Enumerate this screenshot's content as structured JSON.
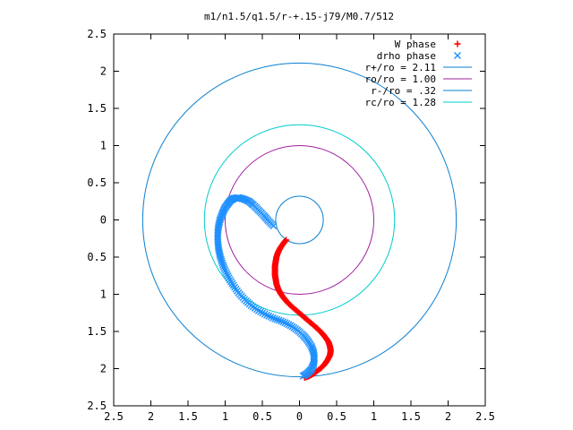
{
  "chart_data": {
    "type": "scatter",
    "title": "m1/n1.5/q1.5/r-+.15-j79/M0.7/512",
    "xlabel": "",
    "ylabel": "",
    "xlim": [
      -2.5,
      2.5
    ],
    "ylim": [
      -2.5,
      2.5
    ],
    "x_ticks": [
      -2.5,
      -2,
      -1.5,
      -1,
      -0.5,
      0,
      0.5,
      1,
      1.5,
      2,
      2.5
    ],
    "y_ticks": [
      -2.5,
      -2,
      -1.5,
      -1,
      -0.5,
      0,
      0.5,
      1,
      1.5,
      2,
      2.5
    ],
    "x_tick_labels": [
      "2.5",
      "2",
      "1.5",
      "1",
      "0.5",
      "0",
      "0.5",
      "1",
      "1.5",
      "2",
      "2.5"
    ],
    "y_tick_labels": [
      "2.5",
      "2",
      "1.5",
      "1",
      "0.5",
      "0",
      "0.5",
      "1",
      "1.5",
      "2",
      "2.5"
    ],
    "grid": false,
    "legend_position": "top-right",
    "series": [
      {
        "name": "W phase",
        "kind": "points",
        "marker": "+",
        "color": "#ff0000",
        "points": [
          [
            -0.18,
            -0.27
          ],
          [
            -0.22,
            -0.32
          ],
          [
            -0.26,
            -0.38
          ],
          [
            -0.29,
            -0.44
          ],
          [
            -0.31,
            -0.5
          ],
          [
            -0.32,
            -0.56
          ],
          [
            -0.33,
            -0.62
          ],
          [
            -0.33,
            -0.68
          ],
          [
            -0.33,
            -0.74
          ],
          [
            -0.32,
            -0.8
          ],
          [
            -0.31,
            -0.86
          ],
          [
            -0.29,
            -0.92
          ],
          [
            -0.26,
            -0.98
          ],
          [
            -0.22,
            -1.04
          ],
          [
            -0.17,
            -1.1
          ],
          [
            -0.11,
            -1.16
          ],
          [
            -0.04,
            -1.22
          ],
          [
            0.03,
            -1.28
          ],
          [
            0.1,
            -1.34
          ],
          [
            0.17,
            -1.4
          ],
          [
            0.24,
            -1.46
          ],
          [
            0.3,
            -1.52
          ],
          [
            0.35,
            -1.58
          ],
          [
            0.39,
            -1.64
          ],
          [
            0.41,
            -1.7
          ],
          [
            0.42,
            -1.76
          ],
          [
            0.41,
            -1.82
          ],
          [
            0.38,
            -1.88
          ],
          [
            0.34,
            -1.94
          ],
          [
            0.28,
            -2.0
          ],
          [
            0.2,
            -2.06
          ],
          [
            0.13,
            -2.1
          ],
          [
            0.07,
            -2.12
          ]
        ]
      },
      {
        "name": "drho phase",
        "kind": "points",
        "marker": "x",
        "color": "#1e90ff",
        "points": [
          [
            -0.35,
            -0.08
          ],
          [
            -0.42,
            -0.01
          ],
          [
            -0.48,
            0.06
          ],
          [
            -0.55,
            0.13
          ],
          [
            -0.62,
            0.2
          ],
          [
            -0.68,
            0.25
          ],
          [
            -0.75,
            0.28
          ],
          [
            -0.82,
            0.3
          ],
          [
            -0.88,
            0.29
          ],
          [
            -0.93,
            0.26
          ],
          [
            -0.97,
            0.21
          ],
          [
            -1.01,
            0.15
          ],
          [
            -1.04,
            0.08
          ],
          [
            -1.07,
            0.0
          ],
          [
            -1.09,
            -0.09
          ],
          [
            -1.1,
            -0.18
          ],
          [
            -1.1,
            -0.28
          ],
          [
            -1.09,
            -0.38
          ],
          [
            -1.07,
            -0.48
          ],
          [
            -1.04,
            -0.58
          ],
          [
            -1.0,
            -0.68
          ],
          [
            -0.95,
            -0.78
          ],
          [
            -0.89,
            -0.88
          ],
          [
            -0.82,
            -0.98
          ],
          [
            -0.74,
            -1.07
          ],
          [
            -0.65,
            -1.15
          ],
          [
            -0.55,
            -1.22
          ],
          [
            -0.44,
            -1.28
          ],
          [
            -0.33,
            -1.33
          ],
          [
            -0.22,
            -1.37
          ],
          [
            -0.12,
            -1.42
          ],
          [
            -0.03,
            -1.48
          ],
          [
            0.05,
            -1.55
          ],
          [
            0.11,
            -1.62
          ],
          [
            0.16,
            -1.7
          ],
          [
            0.19,
            -1.78
          ],
          [
            0.2,
            -1.86
          ],
          [
            0.19,
            -1.94
          ],
          [
            0.16,
            -2.01
          ],
          [
            0.11,
            -2.06
          ],
          [
            0.05,
            -2.1
          ]
        ]
      },
      {
        "name": "r+/ro = 2.11",
        "kind": "circle",
        "radius": 2.11,
        "color": "#0a7fd1"
      },
      {
        "name": "ro/ro = 1.00",
        "kind": "circle",
        "radius": 1.0,
        "color": "#a020a0"
      },
      {
        "name": "r-/ro = .32",
        "kind": "circle",
        "radius": 0.32,
        "color": "#0a7fd1"
      },
      {
        "name": "rc/ro = 1.28",
        "kind": "circle",
        "radius": 1.28,
        "color": "#00cccc"
      }
    ]
  }
}
